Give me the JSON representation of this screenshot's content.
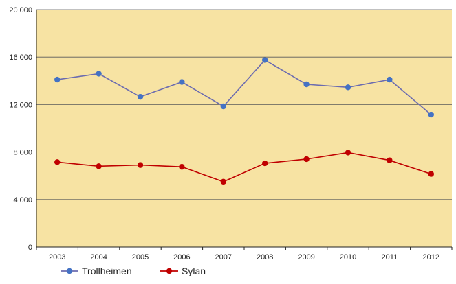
{
  "chart_data": {
    "type": "line",
    "categories": [
      "2003",
      "2004",
      "2005",
      "2006",
      "2007",
      "2008",
      "2009",
      "2010",
      "2011",
      "2012"
    ],
    "series": [
      {
        "name": "Trollheimen",
        "color": "#4472c4",
        "line_color": "#6b6bb0",
        "values": [
          14100,
          14600,
          12650,
          13900,
          11850,
          15750,
          13700,
          13450,
          14100,
          11150
        ]
      },
      {
        "name": "Sylan",
        "color": "#c00000",
        "line_color": "#c00000",
        "values": [
          7150,
          6800,
          6900,
          6750,
          5500,
          7050,
          7400,
          7950,
          7300,
          6150
        ]
      }
    ],
    "y_ticks": [
      "0",
      "4 000",
      "8 000",
      "12 000",
      "16 000",
      "20 000"
    ],
    "ylim": [
      0,
      20000
    ],
    "y_step": 4000,
    "grid": true,
    "legend_position": "bottom-left",
    "plot_background": "#f7e3a3"
  }
}
